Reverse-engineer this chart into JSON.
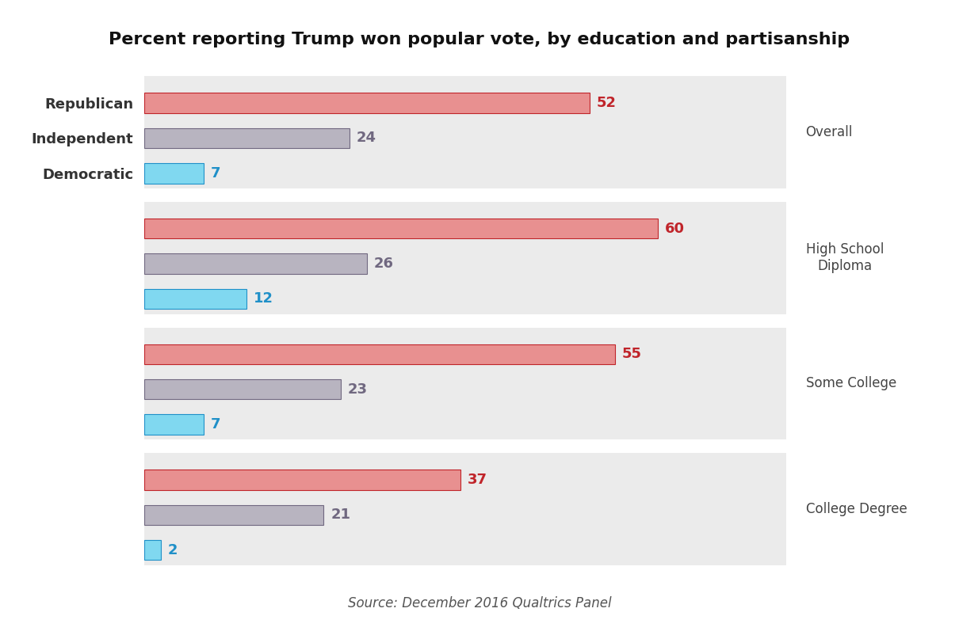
{
  "title": "Percent reporting Trump won popular vote, by education and partisanship",
  "source": "Source: December 2016 Qualtrics Panel",
  "groups": [
    {
      "label": "Overall",
      "republican": 52,
      "independent": 24,
      "democratic": 7
    },
    {
      "label": "High School\nDiploma",
      "republican": 60,
      "independent": 26,
      "democratic": 12
    },
    {
      "label": "Some College",
      "republican": 55,
      "independent": 23,
      "democratic": 7
    },
    {
      "label": "College Degree",
      "republican": 37,
      "independent": 21,
      "democratic": 2
    }
  ],
  "bar_colors": {
    "republican": "#e89090",
    "independent": "#b8b4c0",
    "democratic": "#80d8f0"
  },
  "label_colors": {
    "republican": "#c0242a",
    "independent": "#706880",
    "democratic": "#2090c8"
  },
  "row_labels": [
    "Republican",
    "Independent",
    "Democratic"
  ],
  "group_label_color": "#444444",
  "figure_bg": "#ffffff",
  "panel_bg": "#ebebeb",
  "title_fontsize": 16,
  "label_fontsize": 13,
  "value_fontsize": 13,
  "source_fontsize": 12,
  "group_label_fontsize": 12,
  "xlim": [
    0,
    75
  ]
}
